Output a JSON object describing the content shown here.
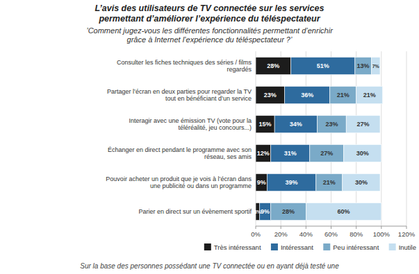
{
  "chart_data": {
    "type": "bar",
    "orientation": "horizontal",
    "stacked": true,
    "title": "L’avis des utilisateurs de TV connectée sur les services\npermettant d’améliorer l’expérience du téléspectateur",
    "subtitle": "’Comment jugez-vous les différentes fonctionnalités permettant d’enrichir\ngrâce à Internet l’expérience du téléspectateur ?’",
    "annotations": [
      "Sur la base des personnes possédant une TV connectée ou en ayant déjà testé une"
    ],
    "categories": [
      "Consulter les fiches techniques des séries / films\nregardés",
      "Partager l’écran en deux parties pour regarder la TV\ntout en bénéficiant d’un service",
      "Interagir avec une émission TV (vote pour la\ntéléréalité, jeu concours...)",
      "Échanger en direct pendant le programme avec son\nréseau, ses amis",
      "Pouvoir acheter un produit que je vois à l’écran dans\nune publicité ou dans un programme",
      "Parier en direct sur un évènement sportif"
    ],
    "series": [
      {
        "name": "Très intéressant",
        "color": "#1c1c1c",
        "values": [
          28,
          23,
          15,
          12,
          9,
          3
        ],
        "value_labels": [
          "28%",
          "23%",
          "15%",
          "12%",
          "9%",
          "3%"
        ]
      },
      {
        "name": "Intéressant",
        "color": "#2e6b9e",
        "values": [
          51,
          36,
          34,
          31,
          39,
          9
        ],
        "value_labels": [
          "51%",
          "36%",
          "34%",
          "31%",
          "39%",
          "9%"
        ]
      },
      {
        "name": "Peu intéressant",
        "color": "#7aaac8",
        "values": [
          13,
          21,
          23,
          27,
          21,
          28
        ],
        "value_labels": [
          "13%",
          "21%",
          "23%",
          "27%",
          "21%",
          "28%"
        ]
      },
      {
        "name": "Inutile",
        "color": "#c5dff0",
        "values": [
          7,
          21,
          27,
          30,
          30,
          60
        ],
        "value_labels": [
          "7%",
          "21%",
          "27%",
          "30%",
          "30%",
          "60%"
        ]
      }
    ],
    "xlim": [
      0,
      120
    ],
    "xticks": [
      {
        "value": 0,
        "label": "0%"
      },
      {
        "value": 20,
        "label": "20%"
      },
      {
        "value": 40,
        "label": "40%"
      },
      {
        "value": 60,
        "label": "60%"
      },
      {
        "value": 80,
        "label": "80%"
      },
      {
        "value": 100,
        "label": "100%"
      },
      {
        "value": 120,
        "label": "120%"
      }
    ],
    "grid": true,
    "legend": "bottom",
    "data_labels": true
  }
}
